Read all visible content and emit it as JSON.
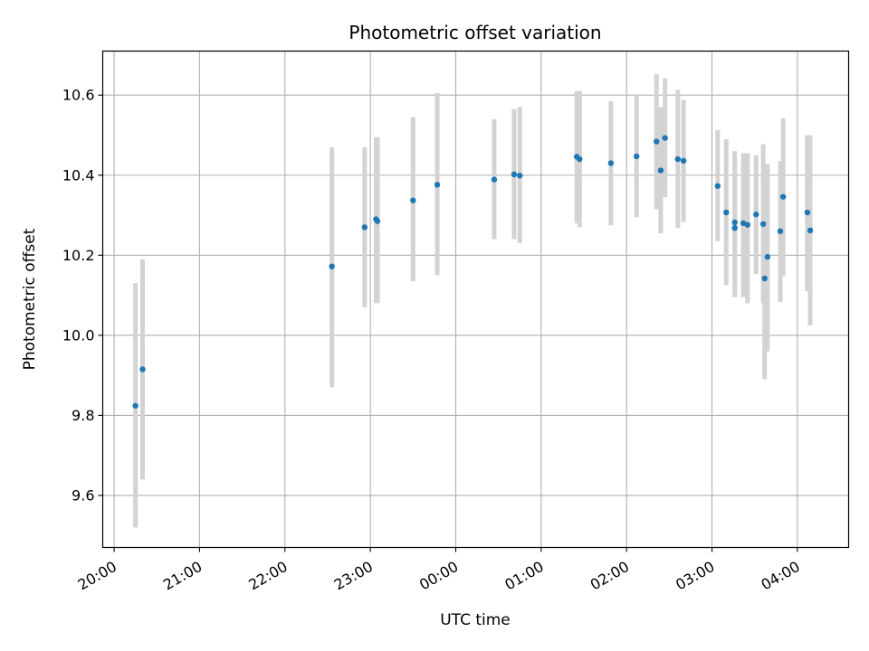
{
  "chart_data": {
    "type": "scatter",
    "title": "Photometric offset variation",
    "xlabel": "UTC time",
    "ylabel": "Photometric offset",
    "grid": true,
    "xlim": [
      "19:52",
      "04:36"
    ],
    "ylim": [
      9.47,
      10.71
    ],
    "x_ticks": [
      "20:00",
      "21:00",
      "22:00",
      "23:00",
      "00:00",
      "01:00",
      "02:00",
      "03:00",
      "04:00"
    ],
    "y_ticks": [
      9.6,
      9.8,
      10.0,
      10.2,
      10.4,
      10.6
    ],
    "y_tick_labels": [
      "9.6",
      "9.8",
      "10.0",
      "10.2",
      "10.4",
      "10.6"
    ],
    "point_color": "#1f77b4",
    "errorbar_color": "#d3d3d3",
    "points": [
      {
        "x": "20:15",
        "y": 9.824,
        "err_low": 9.52,
        "err_high": 10.13
      },
      {
        "x": "20:20",
        "y": 9.915,
        "err_low": 9.64,
        "err_high": 10.19
      },
      {
        "x": "22:33",
        "y": 10.172,
        "err_low": 9.87,
        "err_high": 10.47
      },
      {
        "x": "22:56",
        "y": 10.27,
        "err_low": 10.07,
        "err_high": 10.47
      },
      {
        "x": "23:04",
        "y": 10.29,
        "err_low": 10.08,
        "err_high": 10.495
      },
      {
        "x": "23:05",
        "y": 10.285,
        "err_low": 10.08,
        "err_high": 10.495
      },
      {
        "x": "23:30",
        "y": 10.337,
        "err_low": 10.135,
        "err_high": 10.545
      },
      {
        "x": "23:47",
        "y": 10.376,
        "err_low": 10.15,
        "err_high": 10.605
      },
      {
        "x": "00:27",
        "y": 10.389,
        "err_low": 10.24,
        "err_high": 10.54
      },
      {
        "x": "00:41",
        "y": 10.402,
        "err_low": 10.24,
        "err_high": 10.565
      },
      {
        "x": "00:45",
        "y": 10.399,
        "err_low": 10.23,
        "err_high": 10.57
      },
      {
        "x": "01:25",
        "y": 10.446,
        "err_low": 10.28,
        "err_high": 10.61
      },
      {
        "x": "01:27",
        "y": 10.44,
        "err_low": 10.27,
        "err_high": 10.61
      },
      {
        "x": "01:49",
        "y": 10.43,
        "err_low": 10.275,
        "err_high": 10.585
      },
      {
        "x": "02:07",
        "y": 10.447,
        "err_low": 10.295,
        "err_high": 10.6
      },
      {
        "x": "02:21",
        "y": 10.484,
        "err_low": 10.315,
        "err_high": 10.652
      },
      {
        "x": "02:24",
        "y": 10.412,
        "err_low": 10.255,
        "err_high": 10.57
      },
      {
        "x": "02:27",
        "y": 10.493,
        "err_low": 10.345,
        "err_high": 10.642
      },
      {
        "x": "02:36",
        "y": 10.44,
        "err_low": 10.268,
        "err_high": 10.613
      },
      {
        "x": "02:40",
        "y": 10.436,
        "err_low": 10.283,
        "err_high": 10.588
      },
      {
        "x": "03:04",
        "y": 10.373,
        "err_low": 10.235,
        "err_high": 10.513
      },
      {
        "x": "03:10",
        "y": 10.307,
        "err_low": 10.125,
        "err_high": 10.49
      },
      {
        "x": "03:16",
        "y": 10.282,
        "err_low": 10.095,
        "err_high": 10.46
      },
      {
        "x": "03:16",
        "y": 10.268,
        "err_low": 10.11,
        "err_high": 10.44
      },
      {
        "x": "03:22",
        "y": 10.28,
        "err_low": 10.095,
        "err_high": 10.455
      },
      {
        "x": "03:25",
        "y": 10.276,
        "err_low": 10.08,
        "err_high": 10.455
      },
      {
        "x": "03:31",
        "y": 10.302,
        "err_low": 10.153,
        "err_high": 10.45
      },
      {
        "x": "03:36",
        "y": 10.278,
        "err_low": 10.08,
        "err_high": 10.477
      },
      {
        "x": "03:37",
        "y": 10.142,
        "err_low": 9.89,
        "err_high": 10.41
      },
      {
        "x": "03:39",
        "y": 10.196,
        "err_low": 9.96,
        "err_high": 10.427
      },
      {
        "x": "03:48",
        "y": 10.26,
        "err_low": 10.083,
        "err_high": 10.435
      },
      {
        "x": "03:50",
        "y": 10.346,
        "err_low": 10.148,
        "err_high": 10.542
      },
      {
        "x": "04:07",
        "y": 10.307,
        "err_low": 10.11,
        "err_high": 10.5
      },
      {
        "x": "04:09",
        "y": 10.262,
        "err_low": 10.025,
        "err_high": 10.5
      }
    ]
  }
}
